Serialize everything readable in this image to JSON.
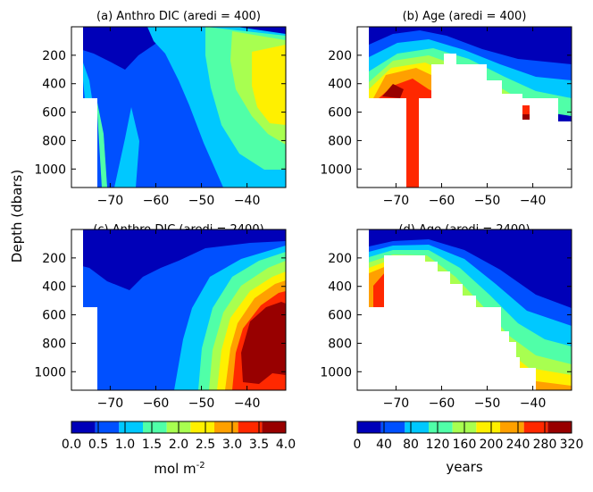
{
  "figure": {
    "ylabel": "Depth (dbars)"
  },
  "chart_data": [
    {
      "type": "heatmap",
      "title": "(a) Anthro DIC (aredi = 400)",
      "xlim": [
        -78.5,
        -31.5
      ],
      "ylim": [
        1130,
        0
      ],
      "xticks": [
        -70,
        -60,
        -50,
        -40
      ],
      "yticks": [
        200,
        400,
        600,
        800,
        1000
      ],
      "levels": [
        0.0,
        0.5,
        1.0,
        1.5,
        2.0,
        2.5,
        3.0,
        3.5,
        4.0
      ]
    },
    {
      "type": "heatmap",
      "title": "(b) Age (aredi = 400)",
      "xlim": [
        -78.5,
        -31.5
      ],
      "ylim": [
        1130,
        0
      ],
      "xticks": [
        -70,
        -60,
        -50,
        -40
      ],
      "yticks": [
        200,
        400,
        600,
        800,
        1000
      ],
      "levels": [
        0,
        40,
        80,
        120,
        160,
        200,
        240,
        280,
        320
      ]
    },
    {
      "type": "heatmap",
      "title": "(c) Anthro DIC (aredi = 2400)",
      "xlim": [
        -78.5,
        -31.5
      ],
      "ylim": [
        1130,
        0
      ],
      "xticks": [
        -70,
        -60,
        -50,
        -40
      ],
      "yticks": [
        200,
        400,
        600,
        800,
        1000
      ],
      "levels": [
        0.0,
        0.5,
        1.0,
        1.5,
        2.0,
        2.5,
        3.0,
        3.5,
        4.0
      ]
    },
    {
      "type": "heatmap",
      "title": "(d) Age (aredi = 2400)",
      "xlim": [
        -78.5,
        -31.5
      ],
      "ylim": [
        1130,
        0
      ],
      "xticks": [
        -70,
        -60,
        -50,
        -40
      ],
      "yticks": [
        200,
        400,
        600,
        800,
        1000
      ],
      "levels": [
        0,
        40,
        80,
        120,
        160,
        200,
        240,
        280,
        320
      ]
    }
  ],
  "colorbars": [
    {
      "labels": [
        "0.0",
        "0.5",
        "1.0",
        "1.5",
        "2.0",
        "2.5",
        "3.0",
        "3.5",
        "4.0"
      ],
      "unit": "mol m",
      "unit_sup": "-2"
    },
    {
      "labels": [
        "0",
        "40",
        "80",
        "120",
        "160",
        "200",
        "240",
        "280",
        "320"
      ],
      "unit": "years"
    }
  ],
  "colors": [
    "#0000b8",
    "#0050ff",
    "#00c8ff",
    "#50ffa8",
    "#a8ff50",
    "#fff000",
    "#ffa000",
    "#ff2800",
    "#980000"
  ]
}
